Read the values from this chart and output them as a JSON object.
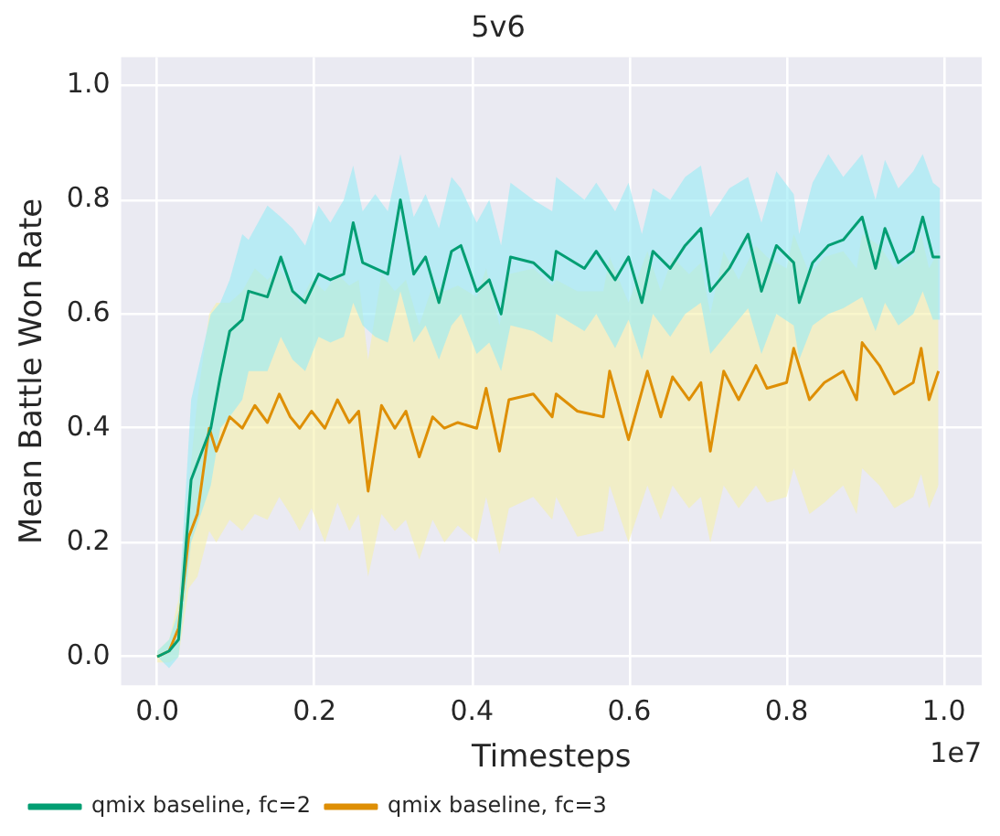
{
  "chart_data": {
    "type": "line",
    "title": "5v6",
    "xlabel": "Timesteps",
    "ylabel": "Mean Battle Won Rate",
    "annotations": [
      "1e7"
    ],
    "xlim": [
      -0.046,
      1.048
    ],
    "ylim": [
      -0.05,
      1.05
    ],
    "xticks": [
      {
        "value": 0,
        "label": "0.0"
      },
      0.2,
      0.4,
      0.6,
      0.8,
      {
        "value": 1,
        "label": "1.0"
      }
    ],
    "yticks": [
      {
        "value": 0,
        "label": "0.0"
      },
      0.2,
      0.4,
      0.6,
      0.8,
      {
        "value": 1,
        "label": "1.0"
      }
    ],
    "grid": true,
    "legend": "bottom left",
    "series": [
      {
        "name": "qmix baseline, fc=2",
        "color": "#029e73",
        "x": [
          0,
          0.015,
          0.027,
          0.043,
          0.068,
          0.08,
          0.092,
          0.108,
          0.116,
          0.14,
          0.157,
          0.172,
          0.188,
          0.205,
          0.22,
          0.237,
          0.249,
          0.261,
          0.277,
          0.293,
          0.309,
          0.326,
          0.341,
          0.358,
          0.374,
          0.386,
          0.406,
          0.422,
          0.437,
          0.449,
          0.478,
          0.502,
          0.507,
          0.543,
          0.558,
          0.582,
          0.599,
          0.616,
          0.63,
          0.652,
          0.671,
          0.691,
          0.703,
          0.727,
          0.751,
          0.768,
          0.787,
          0.809,
          0.816,
          0.833,
          0.853,
          0.872,
          0.896,
          0.913,
          0.925,
          0.942,
          0.961,
          0.973,
          0.986,
          0.995
        ],
        "values": [
          0,
          0.01,
          0.03,
          0.31,
          0.4,
          0.49,
          0.57,
          0.59,
          0.64,
          0.63,
          0.7,
          0.64,
          0.62,
          0.67,
          0.66,
          0.67,
          0.76,
          0.69,
          0.68,
          0.67,
          0.8,
          0.67,
          0.7,
          0.62,
          0.71,
          0.72,
          0.64,
          0.66,
          0.6,
          0.7,
          0.69,
          0.66,
          0.71,
          0.68,
          0.71,
          0.66,
          0.7,
          0.62,
          0.71,
          0.68,
          0.72,
          0.75,
          0.64,
          0.68,
          0.74,
          0.64,
          0.72,
          0.69,
          0.62,
          0.69,
          0.72,
          0.73,
          0.77,
          0.68,
          0.75,
          0.69,
          0.71,
          0.77,
          0.7,
          0.7
        ],
        "lower": [
          0,
          -0.02,
          0,
          0.2,
          0.3,
          0.4,
          0.42,
          0.45,
          0.5,
          0.5,
          0.56,
          0.52,
          0.5,
          0.56,
          0.55,
          0.56,
          0.62,
          0.58,
          0.56,
          0.55,
          0.64,
          0.55,
          0.58,
          0.52,
          0.58,
          0.6,
          0.53,
          0.55,
          0.5,
          0.58,
          0.57,
          0.55,
          0.6,
          0.57,
          0.6,
          0.54,
          0.59,
          0.52,
          0.6,
          0.56,
          0.6,
          0.62,
          0.53,
          0.57,
          0.61,
          0.53,
          0.6,
          0.58,
          0.52,
          0.58,
          0.6,
          0.61,
          0.63,
          0.57,
          0.62,
          0.58,
          0.6,
          0.64,
          0.59,
          0.59
        ],
        "upper": [
          0.01,
          0.03,
          0.08,
          0.45,
          0.6,
          0.62,
          0.66,
          0.74,
          0.73,
          0.79,
          0.77,
          0.75,
          0.72,
          0.79,
          0.76,
          0.8,
          0.86,
          0.78,
          0.81,
          0.78,
          0.88,
          0.77,
          0.81,
          0.75,
          0.84,
          0.82,
          0.76,
          0.8,
          0.72,
          0.83,
          0.8,
          0.78,
          0.84,
          0.8,
          0.83,
          0.78,
          0.83,
          0.74,
          0.82,
          0.8,
          0.84,
          0.86,
          0.77,
          0.82,
          0.84,
          0.76,
          0.85,
          0.81,
          0.74,
          0.83,
          0.88,
          0.84,
          0.88,
          0.8,
          0.87,
          0.82,
          0.85,
          0.88,
          0.83,
          0.82
        ]
      },
      {
        "name": "qmix baseline, fc=3",
        "color": "#de8f05",
        "x": [
          0,
          0.015,
          0.027,
          0.04,
          0.051,
          0.066,
          0.075,
          0.092,
          0.108,
          0.124,
          0.14,
          0.155,
          0.169,
          0.181,
          0.196,
          0.213,
          0.229,
          0.244,
          0.256,
          0.268,
          0.285,
          0.302,
          0.316,
          0.333,
          0.35,
          0.365,
          0.382,
          0.406,
          0.418,
          0.435,
          0.447,
          0.478,
          0.502,
          0.507,
          0.534,
          0.567,
          0.575,
          0.599,
          0.623,
          0.64,
          0.655,
          0.676,
          0.691,
          0.703,
          0.72,
          0.739,
          0.761,
          0.775,
          0.8,
          0.809,
          0.829,
          0.848,
          0.872,
          0.889,
          0.896,
          0.918,
          0.937,
          0.961,
          0.971,
          0.981,
          0.993
        ],
        "values": [
          0,
          0.01,
          0.05,
          0.21,
          0.25,
          0.4,
          0.36,
          0.42,
          0.4,
          0.44,
          0.41,
          0.46,
          0.42,
          0.4,
          0.43,
          0.4,
          0.45,
          0.41,
          0.43,
          0.29,
          0.44,
          0.4,
          0.43,
          0.35,
          0.42,
          0.4,
          0.41,
          0.4,
          0.47,
          0.36,
          0.45,
          0.46,
          0.42,
          0.46,
          0.43,
          0.42,
          0.5,
          0.38,
          0.5,
          0.42,
          0.49,
          0.45,
          0.48,
          0.36,
          0.5,
          0.45,
          0.51,
          0.47,
          0.48,
          0.54,
          0.45,
          0.48,
          0.5,
          0.45,
          0.55,
          0.51,
          0.46,
          0.48,
          0.54,
          0.45,
          0.5
        ],
        "lower": [
          -0.01,
          -0.01,
          0,
          0.12,
          0.14,
          0.22,
          0.2,
          0.24,
          0.22,
          0.25,
          0.24,
          0.28,
          0.25,
          0.22,
          0.26,
          0.2,
          0.27,
          0.22,
          0.25,
          0.14,
          0.25,
          0.22,
          0.24,
          0.17,
          0.24,
          0.2,
          0.23,
          0.2,
          0.28,
          0.18,
          0.26,
          0.28,
          0.24,
          0.28,
          0.21,
          0.22,
          0.3,
          0.2,
          0.3,
          0.24,
          0.3,
          0.26,
          0.28,
          0.2,
          0.3,
          0.26,
          0.3,
          0.27,
          0.28,
          0.33,
          0.25,
          0.27,
          0.3,
          0.25,
          0.33,
          0.3,
          0.26,
          0.28,
          0.32,
          0.26,
          0.3
        ],
        "upper": [
          0.01,
          0.03,
          0.1,
          0.3,
          0.45,
          0.6,
          0.62,
          0.62,
          0.64,
          0.68,
          0.66,
          0.68,
          0.65,
          0.62,
          0.66,
          0.64,
          0.67,
          0.65,
          0.66,
          0.52,
          0.67,
          0.64,
          0.66,
          0.58,
          0.65,
          0.64,
          0.65,
          0.63,
          0.68,
          0.58,
          0.67,
          0.68,
          0.65,
          0.66,
          0.64,
          0.64,
          0.7,
          0.62,
          0.71,
          0.64,
          0.7,
          0.67,
          0.69,
          0.6,
          0.71,
          0.66,
          0.72,
          0.7,
          0.68,
          0.74,
          0.67,
          0.7,
          0.71,
          0.68,
          0.74,
          0.72,
          0.68,
          0.7,
          0.74,
          0.68,
          0.71
        ]
      }
    ]
  }
}
